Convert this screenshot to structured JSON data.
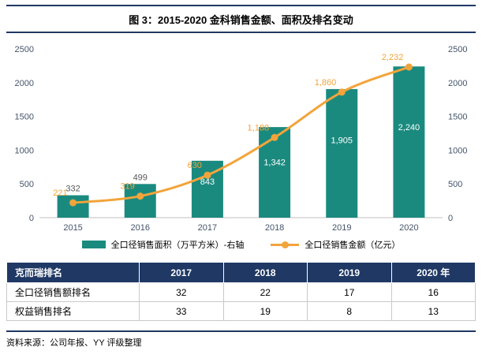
{
  "title": "图 3：2015-2020 金科销售金额、面积及排名变动",
  "colors": {
    "navy": "#1F3864",
    "teal": "#1A8A7F",
    "orange": "#F2A43B",
    "axis_text": "#44546A",
    "axis_line": "#BFBFBF"
  },
  "chart_data": {
    "type": "bar+line",
    "categories": [
      "2015",
      "2016",
      "2017",
      "2018",
      "2019",
      "2020"
    ],
    "series": [
      {
        "name": "全口径销售面积（万平方米）-右轴",
        "type": "bar",
        "axis": "right",
        "color": "#1A8A7F",
        "values": [
          332,
          499,
          843,
          1342,
          1905,
          2240
        ],
        "labels": [
          "332",
          "499",
          "843",
          "1,342",
          "1,905",
          "2,240"
        ]
      },
      {
        "name": "全口径销售金额（亿元）",
        "type": "line",
        "axis": "left",
        "color": "#F2A43B",
        "values": [
          221,
          319,
          630,
          1188,
          1860,
          2232
        ],
        "labels": [
          "221",
          "319",
          "630",
          "1,188",
          "1,860",
          "2,232"
        ]
      }
    ],
    "ylim": [
      0,
      2500
    ],
    "yticks": [
      0,
      500,
      1000,
      1500,
      2000,
      2500
    ],
    "grid": false,
    "legend_position": "bottom"
  },
  "table": {
    "headers": [
      "克而瑞排名",
      "2017",
      "2018",
      "2019",
      "2020 年"
    ],
    "rows": [
      {
        "label": "全口径销售额排名",
        "values": [
          "32",
          "22",
          "17",
          "16"
        ]
      },
      {
        "label": "权益销售排名",
        "values": [
          "33",
          "19",
          "8",
          "13"
        ]
      }
    ]
  },
  "footer": {
    "source": "资料来源：公司年报、YY 评级整理"
  }
}
